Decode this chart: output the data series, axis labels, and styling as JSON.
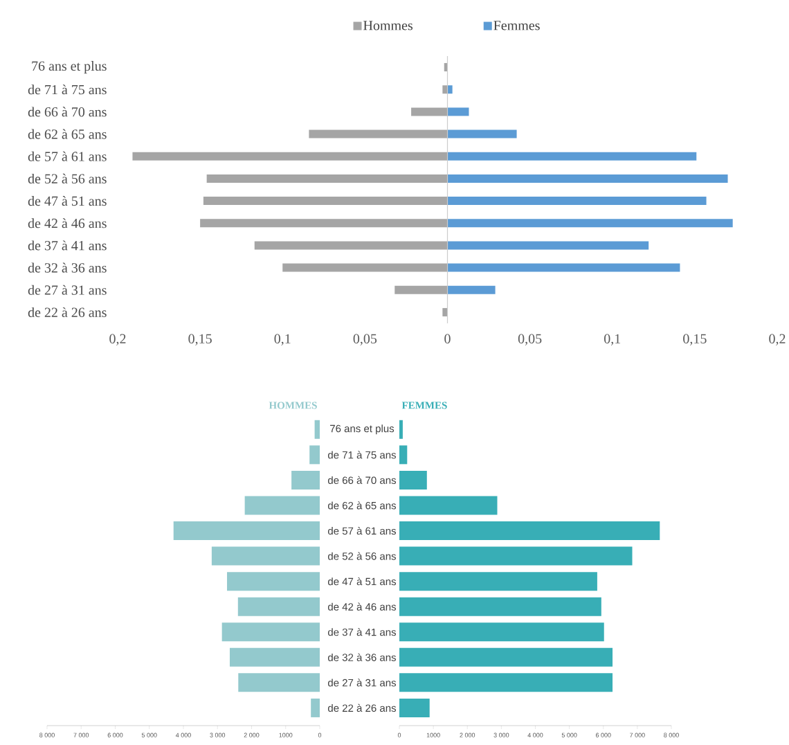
{
  "chart_data": [
    {
      "type": "bar",
      "orientation": "horizontal",
      "stacked": true,
      "legend": "top",
      "categories": [
        "76 ans et plus",
        "de 71 à 75 ans",
        "de 66 à 70 ans",
        "de 62 à 65 ans",
        "de 57 à 61 ans",
        "de 52 à 56 ans",
        "de 47 à 51 ans",
        "de 42 à 46 ans",
        "de 37 à 41 ans",
        "de 32 à 36 ans",
        "de 27 à 31 ans",
        "de 22 à 26 ans"
      ],
      "series": [
        {
          "name": "Hommes",
          "color": "#a5a5a5",
          "values": [
            -0.002,
            -0.003,
            -0.022,
            -0.084,
            -0.191,
            -0.146,
            -0.148,
            -0.15,
            -0.117,
            -0.1,
            -0.032,
            -0.003
          ]
        },
        {
          "name": "Femmes",
          "color": "#5b9bd5",
          "values": [
            0,
            0.003,
            0.013,
            0.042,
            0.151,
            0.17,
            0.157,
            0.173,
            0.122,
            0.141,
            0.029,
            0
          ]
        }
      ],
      "xlim": [
        -0.2,
        0.2
      ],
      "xticks": [
        {
          "value": -0.2,
          "label": "0,2"
        },
        {
          "value": -0.15,
          "label": "0,15"
        },
        {
          "value": -0.1,
          "label": "0,1"
        },
        {
          "value": -0.05,
          "label": "0,05"
        },
        0,
        {
          "value": 0.05,
          "label": "0,05"
        },
        {
          "value": 0.1,
          "label": "0,1"
        },
        {
          "value": 0.15,
          "label": "0,15"
        },
        {
          "value": 0.2,
          "label": "0,2"
        }
      ]
    },
    {
      "type": "bar",
      "orientation": "horizontal",
      "title": "HOMMES",
      "categories": [
        "76 ans et plus",
        "de 71 à 75 ans",
        "de 66 à 70 ans",
        "de 62 à 65 ans",
        "de 57 à 61 ans",
        "de 52 à 56 ans",
        "de 47 à 51 ans",
        "de 42 à 46 ans",
        "de 37 à 41 ans",
        "de 32 à 36 ans",
        "de 27 à 31 ans",
        "de 22 à 26 ans"
      ],
      "series": [
        {
          "color": "#93c9cd",
          "values": [
            150,
            300,
            830,
            2200,
            4290,
            3170,
            2720,
            2400,
            2870,
            2640,
            2390,
            260
          ]
        }
      ],
      "xlim": [
        8000,
        0
      ],
      "xticks": [
        {
          "value": 8000,
          "label": "8 000"
        },
        {
          "value": 7000,
          "label": "7 000"
        },
        {
          "value": 6000,
          "label": "6 000"
        },
        {
          "value": 5000,
          "label": "5 000"
        },
        {
          "value": 4000,
          "label": "4 000"
        },
        {
          "value": 3000,
          "label": "3 000"
        },
        {
          "value": 2000,
          "label": "2 000"
        },
        1000,
        0
      ]
    },
    {
      "type": "bar",
      "orientation": "horizontal",
      "title": "FEMMES",
      "tick_labels": "x",
      "categories": [
        null,
        null,
        null,
        null,
        null,
        null,
        null,
        null,
        null,
        null,
        null,
        null
      ],
      "series": [
        {
          "color": "#38aeb6",
          "values": [
            100,
            230,
            810,
            2880,
            7660,
            6850,
            5820,
            5940,
            6020,
            6270,
            6270,
            890
          ]
        }
      ],
      "xlim": [
        0,
        8000
      ],
      "xticks": [
        0,
        1000,
        {
          "value": 2000,
          "label": "2 000"
        },
        {
          "value": 3000,
          "label": "3 000"
        },
        {
          "value": 4000,
          "label": "4 000"
        },
        {
          "value": 5000,
          "label": "5 000"
        },
        {
          "value": 6000,
          "label": "6 000"
        },
        {
          "value": 7000,
          "label": "7 000"
        },
        {
          "value": 8000,
          "label": "8 000"
        }
      ]
    }
  ]
}
